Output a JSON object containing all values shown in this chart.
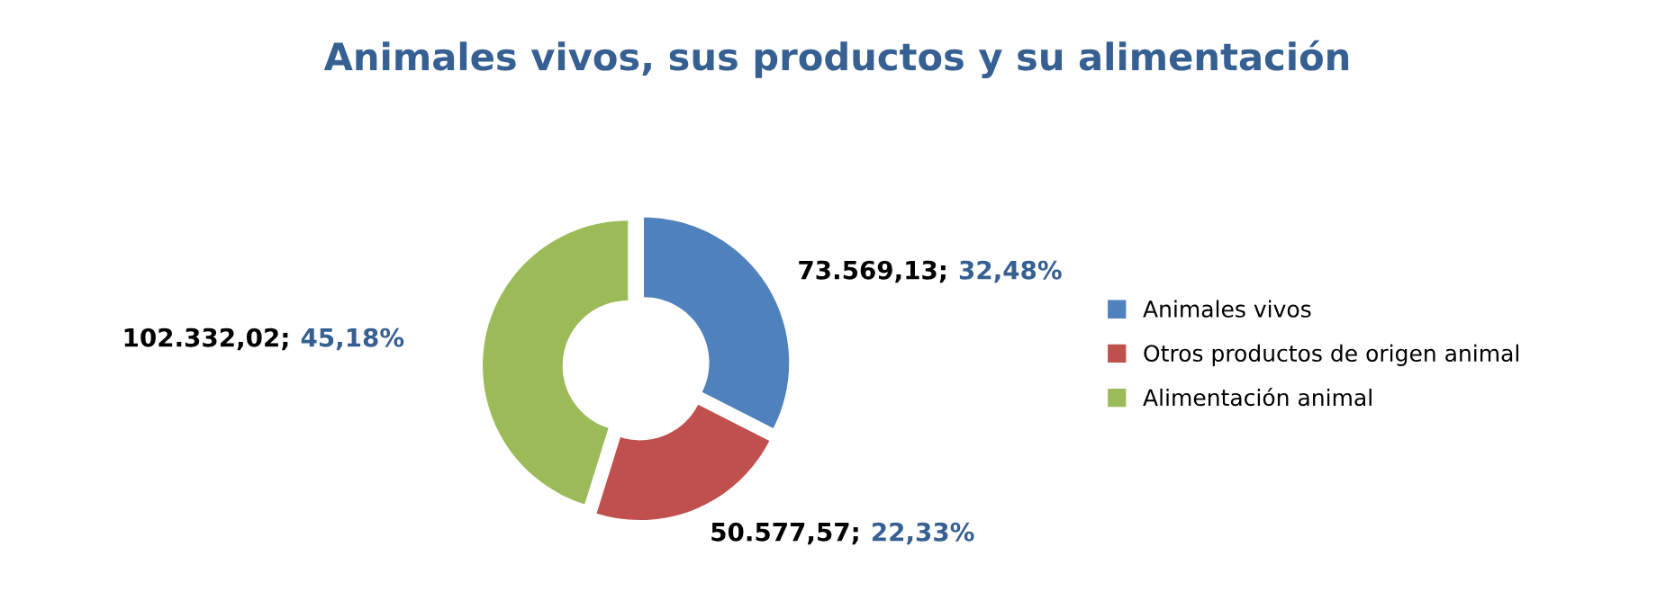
{
  "chart_data": {
    "type": "donut",
    "title": "Animales vivos, sus productos y su alimentación",
    "categories": [
      "Animales vivos",
      "Otros productos de origen animal",
      "Alimentación animal"
    ],
    "values": [
      73569.13,
      50577.57,
      102332.02
    ],
    "colors": [
      "#4f81bd",
      "#c0504d",
      "#9bbb59"
    ],
    "value_labels": [
      "73.569,13; 32,48%",
      "50.577,57; 22,33%",
      "102.332,02; 45,18%"
    ],
    "legend": "right"
  }
}
